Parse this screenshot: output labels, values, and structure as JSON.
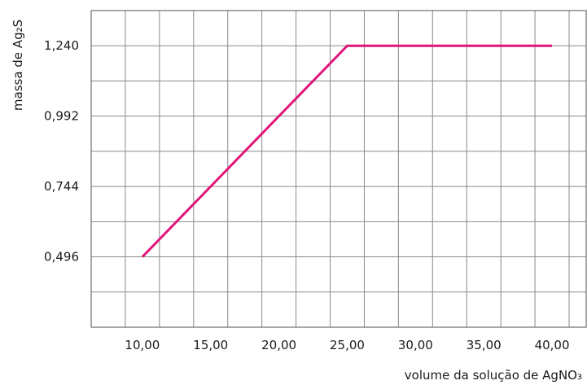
{
  "chart_data": {
    "type": "line",
    "xlabel": "volume da solução de AgNO₃",
    "ylabel": "massa de Ag₂S",
    "x_tick_labels": [
      "10,00",
      "15,00",
      "20,00",
      "25,00",
      "30,00",
      "35,00",
      "40,00"
    ],
    "y_tick_labels": [
      "0,496",
      "0,744",
      "0,992",
      "1,240"
    ],
    "xlim": [
      6.25,
      42.5
    ],
    "ylim": [
      0.248,
      1.364
    ],
    "grid": true,
    "legend": "none",
    "series": [
      {
        "x": [
          10.0,
          25.0,
          40.0
        ],
        "y": [
          0.496,
          1.24,
          1.24
        ],
        "color": "#e0157a"
      }
    ]
  }
}
